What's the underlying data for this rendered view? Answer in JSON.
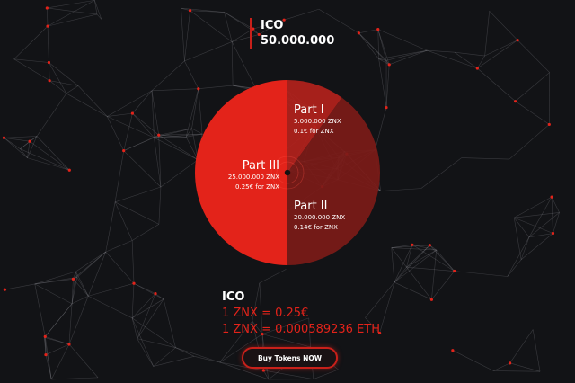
{
  "header": {
    "title": "ICO",
    "total": "50.000.000"
  },
  "chart_data": {
    "type": "pie",
    "title": "",
    "total": 50000000,
    "slices": [
      {
        "name": "Part I",
        "value": 5000000,
        "amount": "5.000.000 ZNX",
        "price": "0.1€ for ZNX",
        "color": "#b3221c"
      },
      {
        "name": "Part II",
        "value": 20000000,
        "amount": "20.000.000 ZNX",
        "price": "0.14€ for ZNX",
        "color": "#7c1b18"
      },
      {
        "name": "Part III",
        "value": 25000000,
        "amount": "25.000.000 ZNX",
        "price": "0.25€ for ZNX",
        "color": "#e3231a"
      }
    ]
  },
  "rates": {
    "title": "ICO",
    "eur": "1 ZNX = 0.25€",
    "eth": "1 ZNX = 0.000589236 ETH"
  },
  "cta": {
    "label": "Buy Tokens NOW"
  },
  "colors": {
    "accent": "#e3231a",
    "background": "#121316"
  }
}
